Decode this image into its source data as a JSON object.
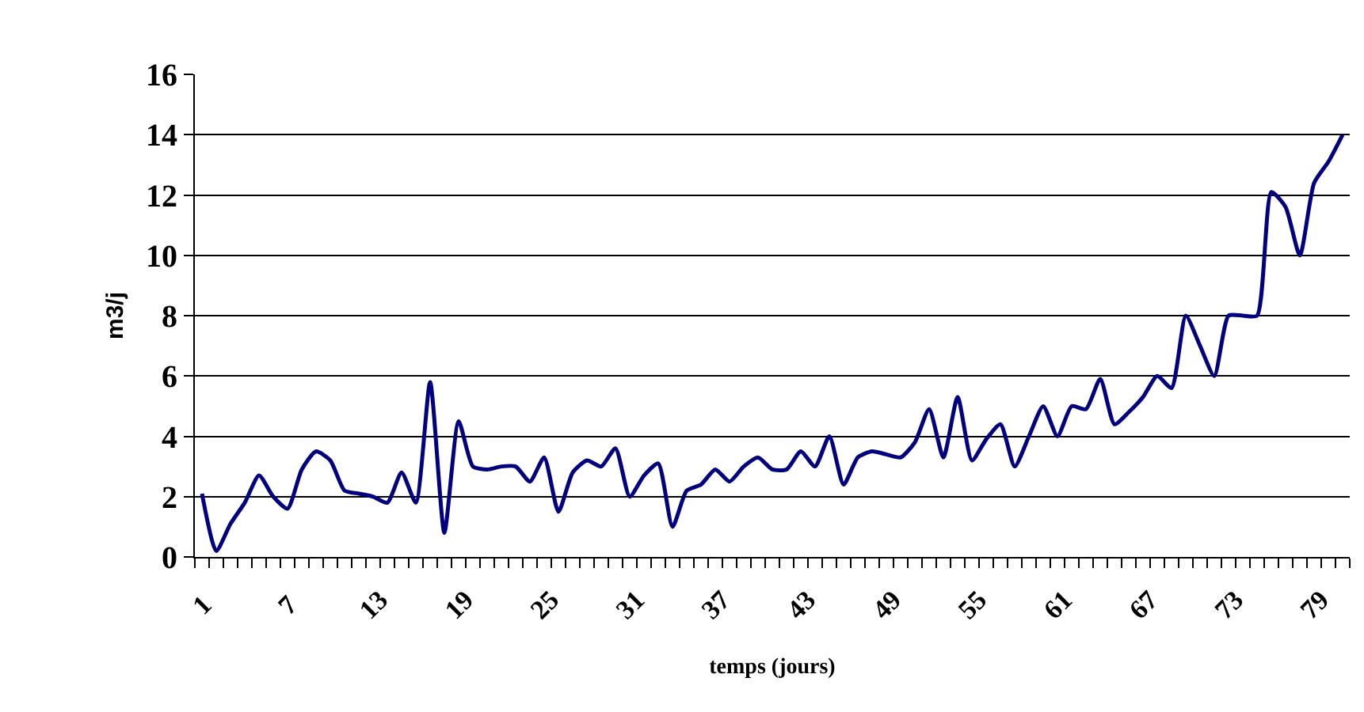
{
  "chart_data": {
    "type": "line",
    "xlabel": "temps (jours)",
    "ylabel": "m3/j",
    "categories": [
      "1",
      null,
      null,
      null,
      null,
      null,
      "7",
      null,
      null,
      null,
      null,
      null,
      "13",
      null,
      null,
      null,
      null,
      null,
      "19",
      null,
      null,
      null,
      null,
      null,
      "25",
      null,
      null,
      null,
      null,
      null,
      "31",
      null,
      null,
      null,
      null,
      null,
      "37",
      null,
      null,
      null,
      null,
      null,
      "43",
      null,
      null,
      null,
      null,
      null,
      "49",
      null,
      null,
      null,
      null,
      null,
      "55",
      null,
      null,
      null,
      null,
      null,
      "61",
      null,
      null,
      null,
      null,
      null,
      "67",
      null,
      null,
      null,
      null,
      null,
      "73",
      null,
      null,
      null,
      null,
      null,
      "79",
      null,
      null
    ],
    "series": [
      {
        "color": "#000080",
        "values": [
          2.1,
          0.2,
          1.1,
          1.8,
          2.7,
          2.0,
          1.6,
          2.9,
          3.5,
          3.2,
          2.2,
          2.1,
          2.0,
          1.8,
          2.8,
          1.8,
          5.8,
          0.8,
          4.5,
          3.0,
          2.9,
          3.0,
          3.0,
          2.5,
          3.3,
          1.5,
          2.8,
          3.2,
          3.0,
          3.6,
          2.0,
          2.7,
          3.1,
          1.0,
          2.2,
          2.4,
          2.9,
          2.5,
          3.0,
          3.3,
          2.9,
          2.9,
          3.5,
          3.0,
          4.0,
          2.4,
          3.3,
          3.5,
          3.4,
          3.3,
          3.8,
          4.9,
          3.3,
          5.3,
          3.2,
          3.9,
          4.4,
          3.0,
          4.0,
          5.0,
          4.0,
          5.0,
          4.9,
          5.9,
          4.4,
          4.8,
          5.3,
          6.0,
          5.6,
          8.0,
          7.0,
          6.0,
          8.0,
          8.0,
          8.0,
          12.1,
          11.6,
          10.0,
          12.4,
          13.1,
          14.0
        ]
      }
    ],
    "ylim": [
      0,
      16
    ],
    "yticks": [
      0,
      2,
      4,
      6,
      8,
      10,
      12,
      14,
      16
    ],
    "grid": "y",
    "marker": "none",
    "line_style": "solid"
  }
}
